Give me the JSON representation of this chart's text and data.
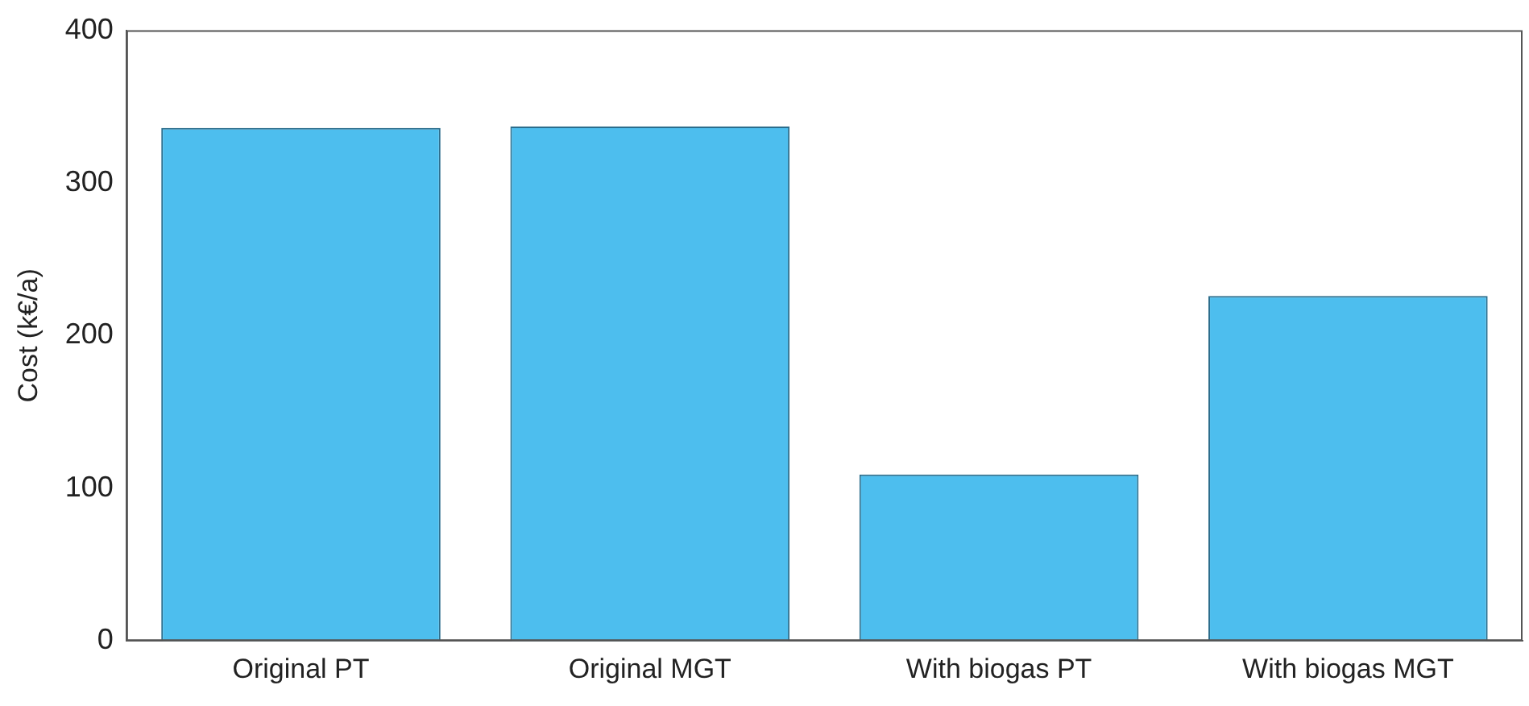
{
  "chart_data": {
    "type": "bar",
    "ylabel": "Cost (k€/a)",
    "categories": [
      "Original PT",
      "Original MGT",
      "With biogas PT",
      "With biogas MGT"
    ],
    "values": [
      336,
      337,
      109,
      226
    ],
    "color": "#4dbeee",
    "ylim": [
      0,
      400
    ],
    "yticks": [
      0,
      100,
      200,
      300,
      400
    ],
    "grid": false,
    "legend": false
  }
}
